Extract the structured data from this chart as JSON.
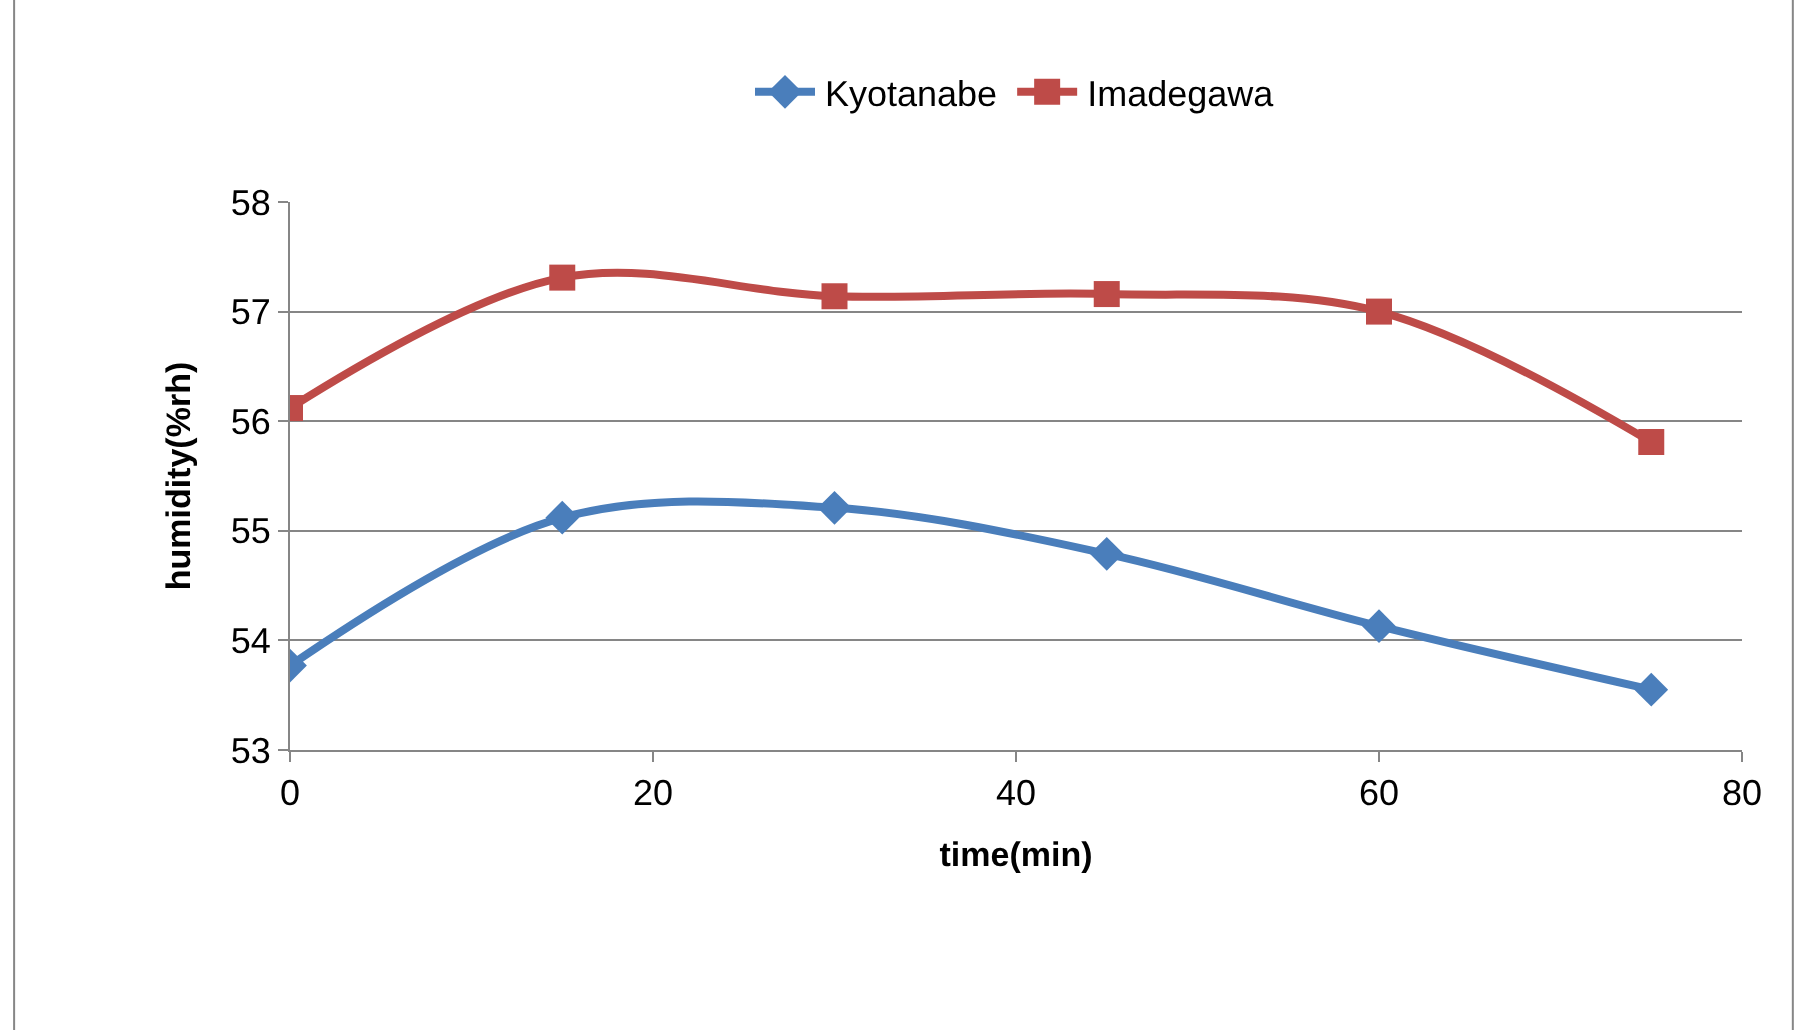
{
  "chart_data": {
    "type": "line",
    "xlabel": "time(min)",
    "ylabel": "humidity(%rh)",
    "x": [
      0,
      15,
      30,
      45,
      60,
      75
    ],
    "series": [
      {
        "name": "Kyotanabe",
        "color": "#4a7ebb",
        "marker": "diamond",
        "values": [
          53.77,
          55.12,
          55.21,
          54.79,
          54.13,
          53.55
        ]
      },
      {
        "name": "Imadegawa",
        "color": "#be4b48",
        "marker": "square",
        "values": [
          56.12,
          57.31,
          57.14,
          57.16,
          57.0,
          55.81
        ]
      }
    ],
    "xlim": [
      0,
      80
    ],
    "xticks": [
      0,
      20,
      40,
      60,
      80
    ],
    "ylim": [
      53,
      58
    ],
    "yticks": [
      53,
      54,
      55,
      56,
      57,
      58
    ],
    "grid": "y",
    "legend": "top",
    "line_style": "solid"
  }
}
